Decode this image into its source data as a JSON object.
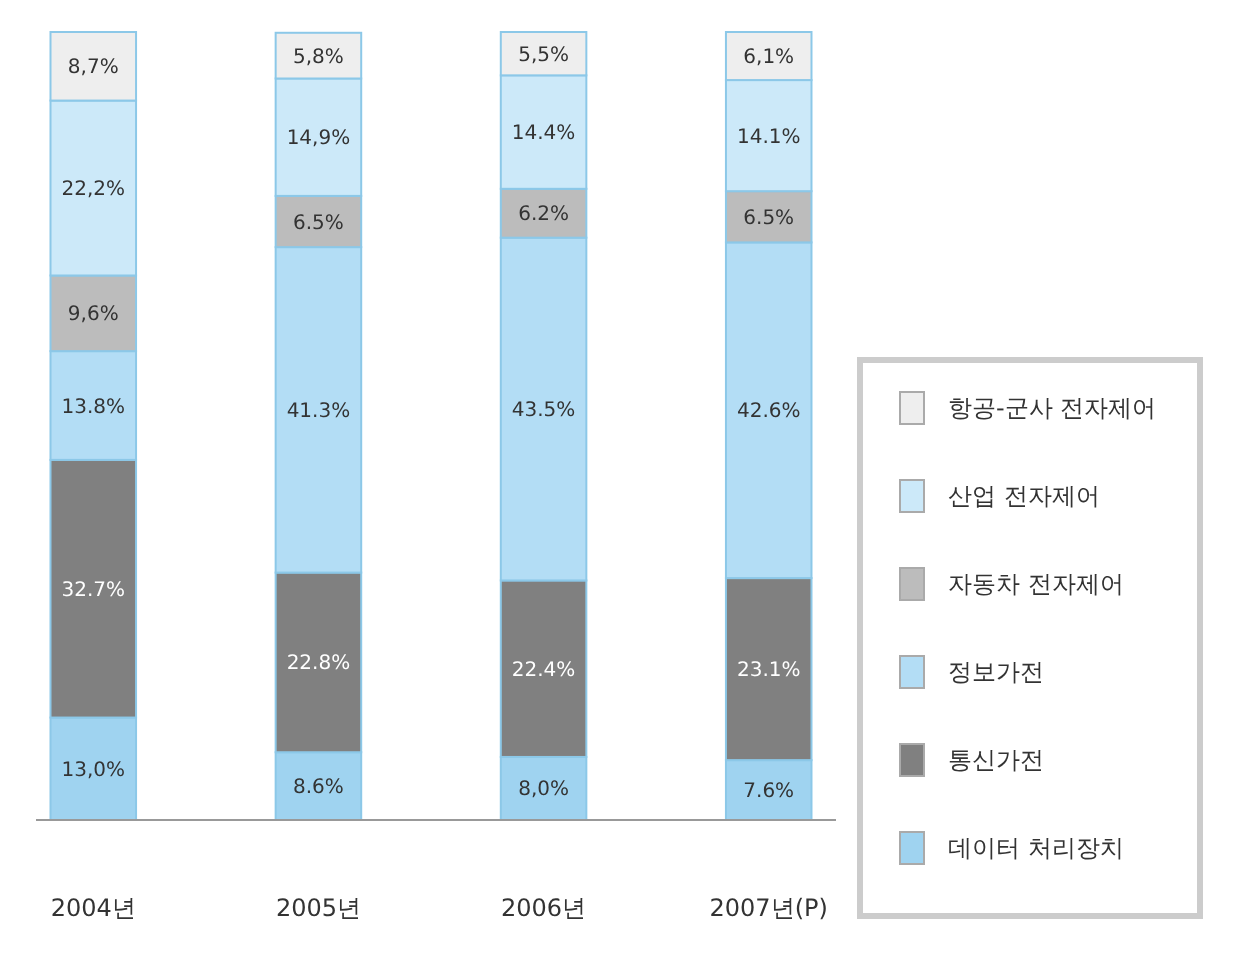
{
  "chart_data": {
    "type": "bar",
    "stacked": true,
    "legend": "right",
    "categories": [
      "2004년",
      "2005년",
      "2006년",
      "2007년(P)"
    ],
    "series": [
      {
        "name": "데이터 처리장치",
        "color": "#9fd3f0",
        "values": [
          13.0,
          8.6,
          8.0,
          7.6
        ],
        "value_labels": [
          "13,0%",
          "8.6%",
          "8,0%",
          "7.6%"
        ]
      },
      {
        "name": "통신가전",
        "color": "#808080",
        "values": [
          32.7,
          22.8,
          22.4,
          23.1
        ],
        "value_labels": [
          "32.7%",
          "22.8%",
          "22.4%",
          "23.1%"
        ]
      },
      {
        "name": "정보가전",
        "color": "#b3ddf5",
        "values": [
          13.8,
          41.3,
          43.5,
          42.6
        ],
        "value_labels": [
          "13.8%",
          "41.3%",
          "43.5%",
          "42.6%"
        ]
      },
      {
        "name": "자동차 전자제어",
        "color": "#bcbcbc",
        "values": [
          9.6,
          6.5,
          6.2,
          6.5
        ],
        "value_labels": [
          "9,6%",
          "6.5%",
          "6.2%",
          "6.5%"
        ]
      },
      {
        "name": "산업 전자제어",
        "color": "#cce9f9",
        "values": [
          22.2,
          14.9,
          14.4,
          14.1
        ],
        "value_labels": [
          "22,2%",
          "14,9%",
          "14.4%",
          "14.1%"
        ]
      },
      {
        "name": "항공-군사 전자제어",
        "color": "#eeeeee",
        "values": [
          8.7,
          5.8,
          5.5,
          6.1
        ],
        "value_labels": [
          "8,7%",
          "5,8%",
          "5,5%",
          "6,1%"
        ]
      }
    ]
  }
}
